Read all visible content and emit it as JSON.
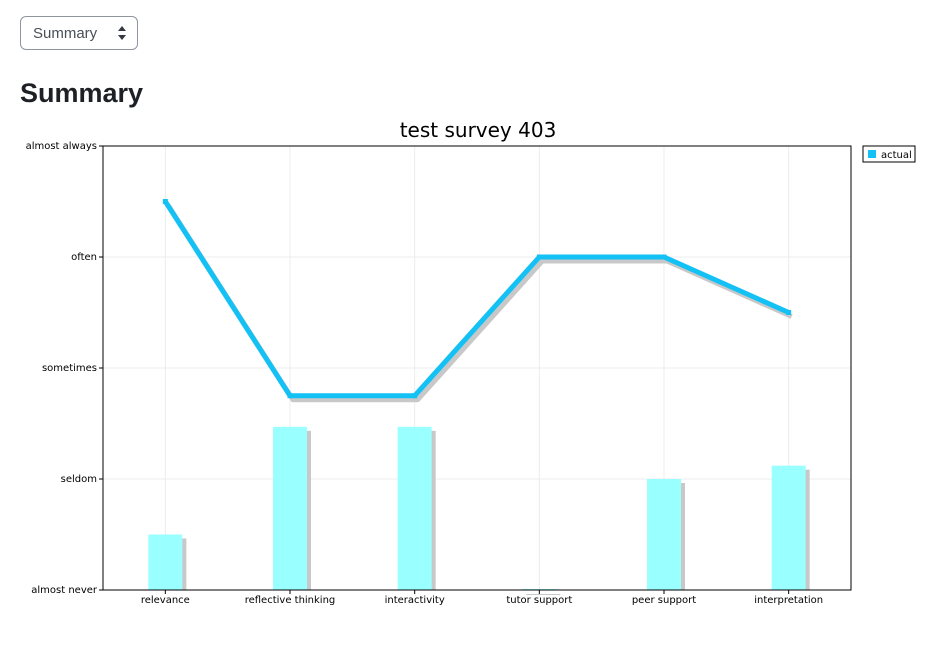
{
  "selector": {
    "selected": "Summary"
  },
  "page": {
    "heading": "Summary"
  },
  "colors": {
    "line": "#14c1f5",
    "bar": "#99ffff",
    "shadow": "#c8c8c8",
    "grid": "#ececec"
  },
  "chart_data": {
    "type": "bar+line",
    "title": "test survey 403",
    "categories": [
      "relevance",
      "reflective thinking",
      "interactivity",
      "tutor support",
      "peer support",
      "interpretation"
    ],
    "y_levels": [
      "almost never",
      "seldom",
      "sometimes",
      "often",
      "almost always"
    ],
    "ylim": [
      0,
      4
    ],
    "legend": {
      "position": "top-right",
      "entries": [
        "actual"
      ]
    },
    "grid": true,
    "series": [
      {
        "name": "actual",
        "type": "line",
        "values": [
          3.5,
          1.75,
          1.75,
          3.0,
          3.0,
          2.5
        ]
      },
      {
        "type": "bar",
        "values": [
          0.5,
          1.47,
          1.47,
          0.0,
          1.0,
          1.12
        ]
      }
    ]
  }
}
